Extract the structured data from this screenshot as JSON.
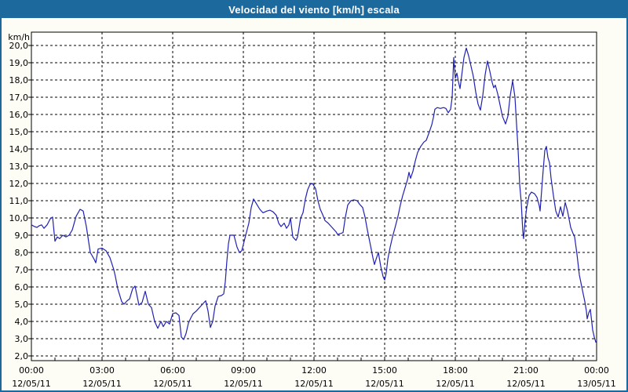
{
  "window": {
    "title": "Velocidad del viento [km/h] escala"
  },
  "colors": {
    "titlebar_bg": "#1c699e",
    "titlebar_text": "#ffffff",
    "window_border": "#1c699e",
    "plot_bg": "#ffffff",
    "plot_border": "#000000",
    "grid": "#000000",
    "line": "#2121b2",
    "label_text": "#000000"
  },
  "chart_data": {
    "type": "line",
    "title": "Velocidad del viento [km/h] escala",
    "grid": "dashed",
    "legend_position": "none",
    "y_axis": {
      "unit_label": "km/h",
      "min": 2,
      "max": 20,
      "step": 1,
      "decimal_separator": ",",
      "tick_labels": [
        "20,0",
        "19,0",
        "18,0",
        "17,0",
        "16,0",
        "15,0",
        "14,0",
        "13,0",
        "12,0",
        "11,0",
        "10,0",
        "9,0",
        "8,0",
        "7,0",
        "6,0",
        "5,0",
        "4,0",
        "3,0",
        "2,0"
      ]
    },
    "x_axis": {
      "unit": "minutes from 00:00 12/05/11",
      "range_minutes": [
        0,
        1440
      ],
      "major_tick_interval_hours": 3,
      "minor_tick_interval_hours": 1,
      "ticks": [
        {
          "time": "00:00",
          "date": "12/05/11"
        },
        {
          "time": "03:00",
          "date": "12/05/11"
        },
        {
          "time": "06:00",
          "date": "12/05/11"
        },
        {
          "time": "09:00",
          "date": "12/05/11"
        },
        {
          "time": "12:00",
          "date": "12/05/11"
        },
        {
          "time": "15:00",
          "date": "12/05/11"
        },
        {
          "time": "18:00",
          "date": "12/05/11"
        },
        {
          "time": "21:00",
          "date": "12/05/11"
        },
        {
          "time": "00:00",
          "date": "13/05/11"
        }
      ]
    },
    "series": [
      {
        "name": "Velocidad del viento",
        "color": "#2121b2",
        "points": [
          [
            0,
            9.6
          ],
          [
            8,
            9.5
          ],
          [
            14,
            9.45
          ],
          [
            20,
            9.55
          ],
          [
            26,
            9.6
          ],
          [
            32,
            9.4
          ],
          [
            40,
            9.6
          ],
          [
            48,
            9.95
          ],
          [
            54,
            10.05
          ],
          [
            60,
            8.65
          ],
          [
            66,
            8.9
          ],
          [
            72,
            8.8
          ],
          [
            80,
            9.0
          ],
          [
            88,
            8.9
          ],
          [
            96,
            9.0
          ],
          [
            104,
            9.3
          ],
          [
            114,
            10.1
          ],
          [
            124,
            10.5
          ],
          [
            132,
            10.4
          ],
          [
            140,
            9.5
          ],
          [
            150,
            8.0
          ],
          [
            160,
            7.6
          ],
          [
            164,
            7.4
          ],
          [
            170,
            8.2
          ],
          [
            180,
            8.25
          ],
          [
            190,
            8.1
          ],
          [
            200,
            7.7
          ],
          [
            210,
            7.0
          ],
          [
            214,
            6.6
          ],
          [
            220,
            5.9
          ],
          [
            230,
            5.15
          ],
          [
            236,
            5.0
          ],
          [
            244,
            5.2
          ],
          [
            250,
            5.3
          ],
          [
            258,
            5.9
          ],
          [
            264,
            6.05
          ],
          [
            270,
            5.4
          ],
          [
            274,
            4.95
          ],
          [
            282,
            5.1
          ],
          [
            290,
            5.75
          ],
          [
            298,
            5.0
          ],
          [
            306,
            4.8
          ],
          [
            314,
            4.0
          ],
          [
            322,
            3.6
          ],
          [
            330,
            4.0
          ],
          [
            336,
            3.7
          ],
          [
            344,
            4.0
          ],
          [
            352,
            3.85
          ],
          [
            360,
            4.45
          ],
          [
            368,
            4.5
          ],
          [
            376,
            4.35
          ],
          [
            382,
            3.1
          ],
          [
            388,
            2.95
          ],
          [
            394,
            3.3
          ],
          [
            400,
            3.9
          ],
          [
            406,
            4.2
          ],
          [
            412,
            4.45
          ],
          [
            420,
            4.6
          ],
          [
            428,
            4.8
          ],
          [
            436,
            5.0
          ],
          [
            444,
            5.2
          ],
          [
            450,
            4.6
          ],
          [
            456,
            3.65
          ],
          [
            462,
            4.0
          ],
          [
            468,
            4.9
          ],
          [
            476,
            5.45
          ],
          [
            484,
            5.5
          ],
          [
            490,
            5.6
          ],
          [
            494,
            6.3
          ],
          [
            498,
            7.5
          ],
          [
            502,
            8.5
          ],
          [
            506,
            9.0
          ],
          [
            516,
            9.0
          ],
          [
            524,
            8.3
          ],
          [
            530,
            8.0
          ],
          [
            536,
            8.1
          ],
          [
            546,
            9.0
          ],
          [
            554,
            9.7
          ],
          [
            560,
            10.6
          ],
          [
            566,
            11.1
          ],
          [
            574,
            10.8
          ],
          [
            582,
            10.5
          ],
          [
            590,
            10.3
          ],
          [
            600,
            10.4
          ],
          [
            608,
            10.45
          ],
          [
            616,
            10.35
          ],
          [
            624,
            10.15
          ],
          [
            630,
            9.7
          ],
          [
            636,
            9.5
          ],
          [
            644,
            9.7
          ],
          [
            650,
            9.4
          ],
          [
            656,
            9.6
          ],
          [
            660,
            10.0
          ],
          [
            666,
            8.9
          ],
          [
            674,
            8.7
          ],
          [
            678,
            8.9
          ],
          [
            686,
            10.0
          ],
          [
            692,
            10.3
          ],
          [
            698,
            11.1
          ],
          [
            704,
            11.65
          ],
          [
            710,
            11.95
          ],
          [
            716,
            12.0
          ],
          [
            724,
            11.7
          ],
          [
            730,
            11.0
          ],
          [
            736,
            10.5
          ],
          [
            742,
            10.2
          ],
          [
            748,
            9.85
          ],
          [
            756,
            9.7
          ],
          [
            766,
            9.45
          ],
          [
            776,
            9.2
          ],
          [
            780,
            9.05
          ],
          [
            788,
            9.1
          ],
          [
            794,
            9.15
          ],
          [
            800,
            10.05
          ],
          [
            806,
            10.75
          ],
          [
            814,
            11.0
          ],
          [
            822,
            11.05
          ],
          [
            830,
            11.0
          ],
          [
            836,
            10.8
          ],
          [
            844,
            10.6
          ],
          [
            850,
            10.05
          ],
          [
            856,
            9.3
          ],
          [
            864,
            8.4
          ],
          [
            870,
            7.7
          ],
          [
            874,
            7.3
          ],
          [
            878,
            7.6
          ],
          [
            884,
            8.0
          ],
          [
            890,
            7.2
          ],
          [
            896,
            6.6
          ],
          [
            900,
            6.4
          ],
          [
            904,
            6.8
          ],
          [
            908,
            7.6
          ],
          [
            914,
            8.3
          ],
          [
            920,
            8.9
          ],
          [
            926,
            9.4
          ],
          [
            934,
            10.1
          ],
          [
            940,
            10.75
          ],
          [
            946,
            11.3
          ],
          [
            954,
            11.9
          ],
          [
            958,
            12.2
          ],
          [
            962,
            12.65
          ],
          [
            966,
            12.3
          ],
          [
            972,
            12.7
          ],
          [
            978,
            13.3
          ],
          [
            984,
            13.8
          ],
          [
            992,
            14.15
          ],
          [
            1000,
            14.4
          ],
          [
            1006,
            14.5
          ],
          [
            1014,
            15.0
          ],
          [
            1020,
            15.4
          ],
          [
            1024,
            15.8
          ],
          [
            1028,
            16.3
          ],
          [
            1034,
            16.4
          ],
          [
            1042,
            16.35
          ],
          [
            1050,
            16.4
          ],
          [
            1056,
            16.35
          ],
          [
            1062,
            16.1
          ],
          [
            1068,
            16.3
          ],
          [
            1072,
            17.0
          ],
          [
            1076,
            19.3
          ],
          [
            1080,
            18.1
          ],
          [
            1084,
            18.4
          ],
          [
            1088,
            17.9
          ],
          [
            1092,
            17.5
          ],
          [
            1096,
            18.2
          ],
          [
            1102,
            19.3
          ],
          [
            1108,
            19.85
          ],
          [
            1114,
            19.4
          ],
          [
            1120,
            18.8
          ],
          [
            1126,
            18.2
          ],
          [
            1132,
            17.3
          ],
          [
            1138,
            16.6
          ],
          [
            1144,
            16.25
          ],
          [
            1150,
            17.1
          ],
          [
            1156,
            18.3
          ],
          [
            1162,
            19.1
          ],
          [
            1168,
            18.5
          ],
          [
            1174,
            17.85
          ],
          [
            1178,
            17.55
          ],
          [
            1182,
            17.7
          ],
          [
            1188,
            17.2
          ],
          [
            1194,
            16.55
          ],
          [
            1200,
            15.9
          ],
          [
            1208,
            15.45
          ],
          [
            1214,
            15.9
          ],
          [
            1220,
            17.1
          ],
          [
            1226,
            17.95
          ],
          [
            1232,
            17.0
          ],
          [
            1236,
            15.45
          ],
          [
            1240,
            13.95
          ],
          [
            1244,
            11.95
          ],
          [
            1248,
            10.9
          ],
          [
            1252,
            9.2
          ],
          [
            1254,
            8.8
          ],
          [
            1258,
            9.9
          ],
          [
            1262,
            10.6
          ],
          [
            1268,
            11.3
          ],
          [
            1274,
            11.5
          ],
          [
            1282,
            11.4
          ],
          [
            1288,
            11.2
          ],
          [
            1294,
            10.7
          ],
          [
            1296,
            10.4
          ],
          [
            1300,
            11.6
          ],
          [
            1304,
            12.8
          ],
          [
            1308,
            13.9
          ],
          [
            1312,
            14.15
          ],
          [
            1316,
            13.5
          ],
          [
            1320,
            13.2
          ],
          [
            1324,
            12.3
          ],
          [
            1330,
            11.3
          ],
          [
            1336,
            10.4
          ],
          [
            1342,
            10.05
          ],
          [
            1348,
            10.65
          ],
          [
            1354,
            10.1
          ],
          [
            1360,
            10.9
          ],
          [
            1366,
            10.4
          ],
          [
            1374,
            9.45
          ],
          [
            1380,
            9.1
          ],
          [
            1384,
            8.9
          ],
          [
            1390,
            7.9
          ],
          [
            1396,
            6.7
          ],
          [
            1404,
            5.8
          ],
          [
            1410,
            5.15
          ],
          [
            1414,
            4.6
          ],
          [
            1416,
            4.15
          ],
          [
            1420,
            4.5
          ],
          [
            1424,
            4.7
          ],
          [
            1430,
            3.5
          ],
          [
            1434,
            3.1
          ],
          [
            1438,
            2.8
          ]
        ]
      }
    ]
  }
}
